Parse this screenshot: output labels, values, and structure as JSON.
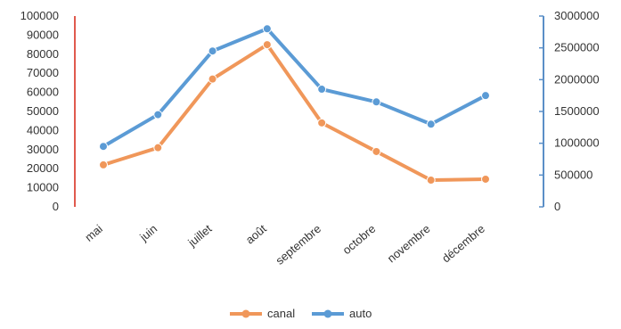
{
  "chart_data": {
    "type": "line",
    "categories": [
      "mai",
      "juin",
      "juillet",
      "août",
      "septembre",
      "octobre",
      "novembre",
      "décembre"
    ],
    "series": [
      {
        "name": "canal",
        "axis": "left",
        "color": "#F0975A",
        "values": [
          22000,
          31000,
          67000,
          85000,
          44000,
          29000,
          14000,
          14500
        ]
      },
      {
        "name": "auto",
        "axis": "right",
        "color": "#5B9BD5",
        "values": [
          950000,
          1450000,
          2450000,
          2800000,
          1850000,
          1650000,
          1300000,
          1750000
        ]
      }
    ],
    "y_left": {
      "min": 0,
      "max": 100000,
      "ticks": [
        "0",
        "10000",
        "20000",
        "30000",
        "40000",
        "50000",
        "60000",
        "70000",
        "80000",
        "90000",
        "100000"
      ],
      "axis_color": "#E05A4E"
    },
    "y_right": {
      "min": 0,
      "max": 3000000,
      "ticks": [
        "0",
        "500000",
        "1000000",
        "1500000",
        "2000000",
        "2500000",
        "3000000"
      ],
      "axis_color": "#5B8FC7"
    },
    "legend_position": "bottom",
    "grid": false
  }
}
